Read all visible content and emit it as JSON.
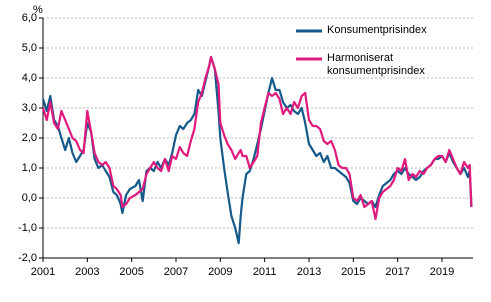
{
  "chart_data": {
    "type": "line",
    "y_unit": "%",
    "x": [
      2001.0,
      2001.17,
      2001.33,
      2001.5,
      2001.67,
      2001.83,
      2002.0,
      2002.17,
      2002.33,
      2002.5,
      2002.67,
      2002.83,
      2003.0,
      2003.17,
      2003.33,
      2003.5,
      2003.67,
      2003.83,
      2004.0,
      2004.17,
      2004.33,
      2004.5,
      2004.58,
      2004.75,
      2004.92,
      2005.17,
      2005.33,
      2005.5,
      2005.67,
      2005.83,
      2006.0,
      2006.17,
      2006.33,
      2006.5,
      2006.67,
      2006.83,
      2007.0,
      2007.17,
      2007.33,
      2007.5,
      2007.67,
      2007.83,
      2008.0,
      2008.17,
      2008.33,
      2008.5,
      2008.58,
      2008.75,
      2008.92,
      2009.0,
      2009.17,
      2009.33,
      2009.5,
      2009.67,
      2009.83,
      2009.92,
      2010.0,
      2010.17,
      2010.33,
      2010.5,
      2010.67,
      2010.83,
      2011.0,
      2011.17,
      2011.33,
      2011.5,
      2011.67,
      2011.83,
      2012.0,
      2012.17,
      2012.33,
      2012.5,
      2012.67,
      2012.83,
      2013.0,
      2013.17,
      2013.33,
      2013.5,
      2013.67,
      2013.83,
      2014.0,
      2014.17,
      2014.33,
      2014.5,
      2014.67,
      2014.83,
      2015.0,
      2015.17,
      2015.33,
      2015.5,
      2015.67,
      2015.83,
      2016.0,
      2016.17,
      2016.33,
      2016.5,
      2016.67,
      2016.83,
      2017.0,
      2017.17,
      2017.33,
      2017.5,
      2017.67,
      2017.83,
      2018.0,
      2018.17,
      2018.33,
      2018.5,
      2018.67,
      2018.83,
      2019.0,
      2019.17,
      2019.33,
      2019.5,
      2019.67,
      2019.83,
      2020.0,
      2020.17,
      2020.25,
      2020.33
    ],
    "series": [
      {
        "name": "Konsumentprisindex",
        "color": "#155a8a",
        "values": [
          3.3,
          2.9,
          3.4,
          2.6,
          2.4,
          2.0,
          1.6,
          2.0,
          1.5,
          1.2,
          1.4,
          1.6,
          2.5,
          2.2,
          1.3,
          1.0,
          1.1,
          0.9,
          0.7,
          0.2,
          0.1,
          -0.2,
          -0.5,
          0.1,
          0.3,
          0.4,
          0.6,
          -0.1,
          0.9,
          1.0,
          0.9,
          1.2,
          1.0,
          1.3,
          1.1,
          1.5,
          2.1,
          2.4,
          2.3,
          2.5,
          2.6,
          2.8,
          3.6,
          3.4,
          3.9,
          4.4,
          4.7,
          4.3,
          2.9,
          2.0,
          1.0,
          0.2,
          -0.6,
          -1.0,
          -1.5,
          -0.6,
          0.0,
          0.8,
          0.9,
          1.3,
          1.8,
          2.3,
          2.9,
          3.5,
          4.0,
          3.6,
          3.6,
          3.2,
          3.0,
          3.1,
          2.9,
          2.8,
          3.0,
          2.5,
          1.8,
          1.6,
          1.4,
          1.5,
          1.2,
          1.4,
          1.0,
          1.0,
          0.9,
          0.8,
          0.7,
          0.5,
          -0.1,
          -0.2,
          0.0,
          -0.1,
          -0.2,
          -0.1,
          -0.3,
          0.1,
          0.4,
          0.5,
          0.6,
          0.8,
          0.9,
          0.8,
          1.0,
          0.8,
          0.7,
          0.6,
          0.7,
          0.9,
          1.0,
          1.1,
          1.3,
          1.3,
          1.4,
          1.2,
          1.5,
          1.2,
          1.0,
          0.8,
          1.0,
          0.7,
          0.9,
          -0.3
        ]
      },
      {
        "name": "Harmoniserat konsumentprisindex",
        "color": "#e0197d",
        "values": [
          3.0,
          2.6,
          3.2,
          2.5,
          2.3,
          2.9,
          2.6,
          2.3,
          2.0,
          1.9,
          1.6,
          1.5,
          2.9,
          2.2,
          1.5,
          1.2,
          1.1,
          1.2,
          1.0,
          0.4,
          0.3,
          0.1,
          -0.3,
          -0.2,
          0.0,
          0.1,
          0.2,
          0.3,
          0.8,
          1.0,
          1.2,
          1.0,
          0.9,
          1.3,
          0.9,
          1.4,
          1.3,
          1.7,
          1.5,
          1.4,
          1.9,
          2.3,
          3.2,
          3.5,
          4.0,
          4.4,
          4.7,
          4.3,
          3.8,
          2.5,
          2.1,
          1.8,
          1.6,
          1.3,
          1.5,
          1.6,
          1.4,
          1.4,
          1.0,
          1.2,
          1.4,
          2.5,
          3.0,
          3.5,
          3.4,
          3.5,
          3.3,
          2.8,
          3.0,
          2.8,
          3.2,
          3.0,
          3.4,
          3.5,
          2.6,
          2.4,
          2.4,
          2.3,
          1.9,
          1.8,
          1.9,
          1.6,
          1.1,
          1.0,
          1.0,
          0.8,
          0.0,
          -0.1,
          0.1,
          -0.3,
          -0.2,
          -0.1,
          -0.7,
          0.0,
          0.2,
          0.3,
          0.4,
          0.6,
          1.0,
          0.9,
          1.3,
          0.6,
          0.8,
          0.7,
          0.9,
          0.8,
          1.0,
          1.1,
          1.3,
          1.4,
          1.4,
          1.2,
          1.6,
          1.3,
          1.0,
          0.8,
          1.2,
          1.0,
          1.1,
          -0.3
        ]
      }
    ],
    "xlim": [
      2001,
      2020.4
    ],
    "xticks": [
      2001,
      2003,
      2005,
      2007,
      2009,
      2011,
      2013,
      2015,
      2017,
      2019
    ],
    "ylim": [
      -2,
      6
    ],
    "yticks": [
      {
        "value": -2,
        "label": "-2,0"
      },
      {
        "value": -1,
        "label": "-1,0"
      },
      {
        "value": 0,
        "label": "0,0"
      },
      {
        "value": 1,
        "label": "1,0"
      },
      {
        "value": 2,
        "label": "2,0"
      },
      {
        "value": 3,
        "label": "3,0"
      },
      {
        "value": 4,
        "label": "4,0"
      },
      {
        "value": 5,
        "label": "5,0"
      },
      {
        "value": 6,
        "label": "6,0"
      }
    ],
    "grid": true
  }
}
